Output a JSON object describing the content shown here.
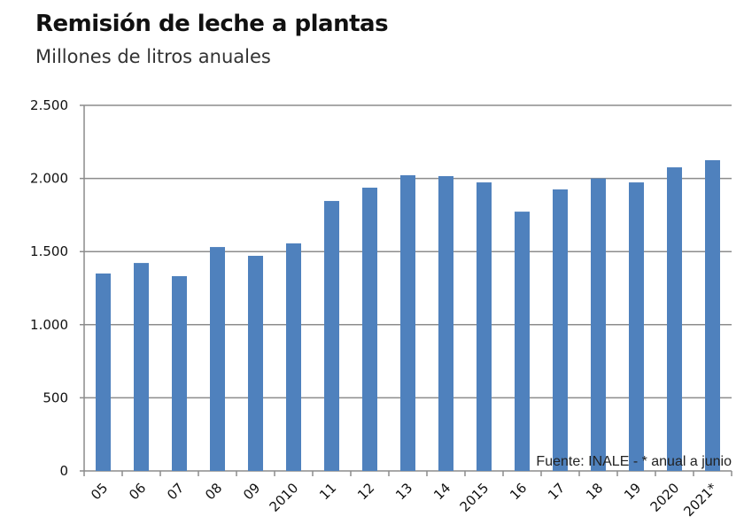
{
  "chart_data": {
    "type": "bar",
    "title": "Remisión de leche a plantas",
    "subtitle": "Millones de litros anuales",
    "xlabel": "",
    "ylabel": "",
    "categories": [
      "05",
      "06",
      "07",
      "08",
      "09",
      "2010",
      "11",
      "12",
      "13",
      "14",
      "2015",
      "16",
      "17",
      "18",
      "19",
      "2020",
      "2021*"
    ],
    "values": [
      1350,
      1422,
      1332,
      1531,
      1471,
      1556,
      1846,
      1937,
      2022,
      2016,
      1973,
      1773,
      1925,
      2000,
      1973,
      2076,
      2125
    ],
    "ylim": [
      0,
      2500
    ],
    "yticks": [
      0,
      500,
      1000,
      1500,
      2000,
      2500
    ],
    "ytick_labels": [
      "0",
      "500",
      "1.000",
      "1.500",
      "2.000",
      "2.500"
    ],
    "grid": true,
    "legend": "none",
    "annotation": "Fuente: INALE - * anual a junio",
    "bar_color": "#4f81bd"
  }
}
